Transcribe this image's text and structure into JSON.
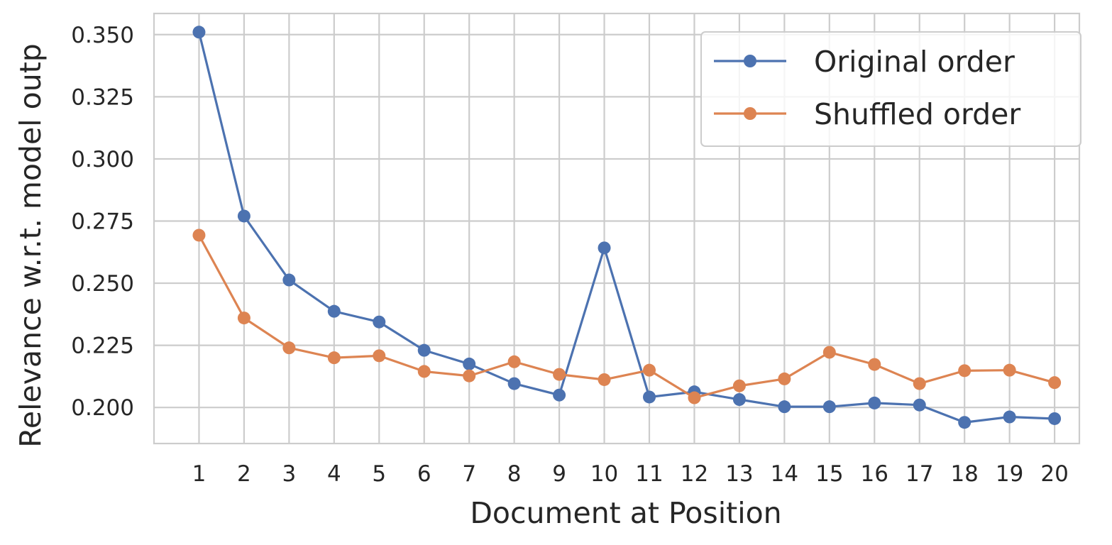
{
  "chart_data": {
    "type": "line",
    "title": "",
    "xlabel": "Document at Position",
    "ylabel": "Relevance w.r.t. model outp",
    "x": [
      1,
      2,
      3,
      4,
      5,
      6,
      7,
      8,
      9,
      10,
      11,
      12,
      13,
      14,
      15,
      16,
      17,
      18,
      19,
      20
    ],
    "x_tick_labels": [
      "1",
      "2",
      "3",
      "4",
      "5",
      "6",
      "7",
      "8",
      "9",
      "10",
      "11",
      "12",
      "13",
      "14",
      "15",
      "16",
      "17",
      "18",
      "19",
      "20"
    ],
    "xlim": [
      0.0,
      20.55
    ],
    "ylim": [
      0.1855,
      0.3585
    ],
    "yticks": [
      0.2,
      0.225,
      0.25,
      0.275,
      0.3,
      0.325,
      0.35
    ],
    "y_tick_labels": [
      "0.200",
      "0.225",
      "0.250",
      "0.275",
      "0.300",
      "0.325",
      "0.350"
    ],
    "grid": true,
    "legend_position": "top-right",
    "series": [
      {
        "name": "Original order",
        "color": "#4c72b0",
        "values": [
          0.351,
          0.277,
          0.2513,
          0.2387,
          0.2344,
          0.223,
          0.2175,
          0.2096,
          0.205,
          0.2642,
          0.2042,
          0.2063,
          0.2032,
          0.2003,
          0.2003,
          0.2018,
          0.201,
          0.194,
          0.1962,
          0.1955
        ]
      },
      {
        "name": "Shuffled order",
        "color": "#dd8452",
        "values": [
          0.2693,
          0.236,
          0.224,
          0.22,
          0.2208,
          0.2145,
          0.2127,
          0.2184,
          0.2133,
          0.2112,
          0.215,
          0.2039,
          0.2087,
          0.2115,
          0.2222,
          0.2173,
          0.2096,
          0.2148,
          0.215,
          0.21
        ]
      }
    ]
  }
}
